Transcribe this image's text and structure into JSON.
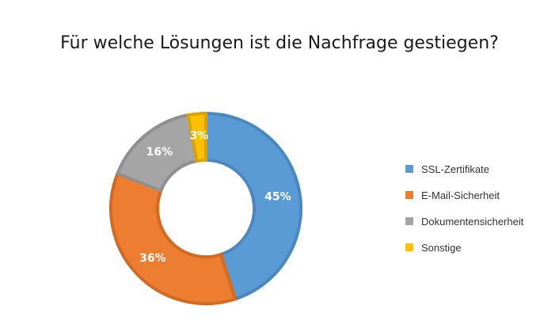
{
  "chart_data": {
    "type": "pie",
    "variant": "donut",
    "title": "Für welche Lösungen ist die Nachfrage gestiegen?",
    "categories": [
      "SSL-Zertifikate",
      "E-Mail-Sicherheit",
      "Dokumentensicherheit",
      "Sonstige"
    ],
    "values": [
      45,
      36,
      16,
      3
    ],
    "value_labels": [
      "45%",
      "36%",
      "16%",
      "3%"
    ],
    "colors": [
      "#5B9BD5",
      "#ED7D31",
      "#A5A5A5",
      "#FFC000"
    ],
    "border_colors": [
      "#4A86BF",
      "#D26A22",
      "#8F8F8F",
      "#D9A300"
    ],
    "legend_position": "right"
  }
}
